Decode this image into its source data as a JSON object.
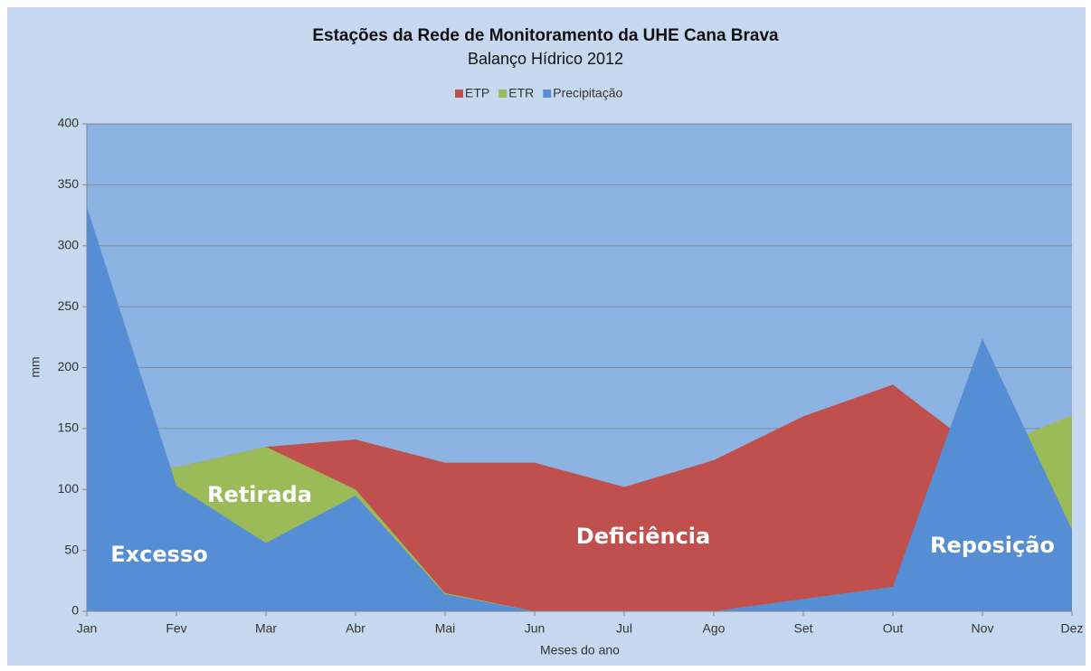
{
  "chart_data": {
    "type": "area",
    "title": "Estações da Rede de Monitoramento da UHE Cana Brava",
    "subtitle": "Balanço Hídrico 2012",
    "x_label": "Meses do ano",
    "y_label": "mm",
    "categories": [
      "Jan",
      "Fev",
      "Mar",
      "Abr",
      "Mai",
      "Jun",
      "Jul",
      "Ago",
      "Set",
      "Out",
      "Nov",
      "Dez"
    ],
    "series": [
      {
        "name": "ETP",
        "color": "#c0504d",
        "values": [
          125,
          118,
          135,
          141,
          122,
          122,
          102,
          124,
          160,
          186,
          130,
          150
        ]
      },
      {
        "name": "ETR",
        "color": "#9bbb59",
        "values": [
          125,
          118,
          135,
          100,
          15,
          0,
          0,
          0,
          10,
          20,
          130,
          161
        ]
      },
      {
        "name": "Precipitação",
        "color": "#558ed5",
        "values": [
          332,
          103,
          56,
          95,
          14,
          0,
          0,
          0,
          10,
          20,
          224,
          67
        ]
      }
    ],
    "annotations": [
      "Excesso",
      "Retirada",
      "Deficiência",
      "Reposição"
    ],
    "ylim": [
      0,
      400
    ],
    "yticks": [
      0,
      50,
      100,
      150,
      200,
      250,
      300,
      350,
      400
    ],
    "grid": true,
    "legend": "top"
  }
}
